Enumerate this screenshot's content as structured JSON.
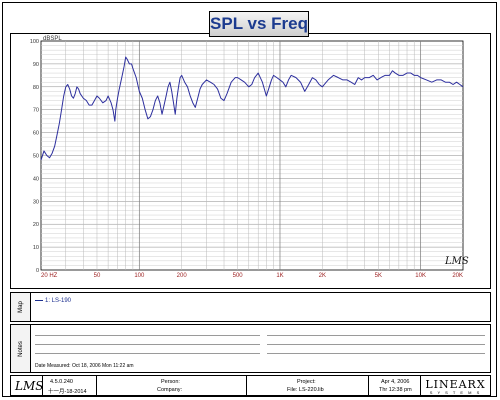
{
  "title": "SPL vs Freq",
  "chart_data": {
    "type": "line",
    "title": "SPL vs Freq",
    "ylabel": "dBSPL",
    "xlabel": "",
    "x_scale": "log",
    "xlim": [
      20,
      20000
    ],
    "ylim": [
      0,
      100
    ],
    "x_ticks": [
      {
        "v": 20,
        "label": "20 HZ"
      },
      {
        "v": 50,
        "label": "50"
      },
      {
        "v": 100,
        "label": "100"
      },
      {
        "v": 200,
        "label": "200"
      },
      {
        "v": 500,
        "label": "500"
      },
      {
        "v": 1000,
        "label": "1K"
      },
      {
        "v": 2000,
        "label": "2K"
      },
      {
        "v": 5000,
        "label": "5K"
      },
      {
        "v": 10000,
        "label": "10K"
      },
      {
        "v": 20000,
        "label": "20K"
      }
    ],
    "y_ticks": [
      0,
      10,
      20,
      30,
      40,
      50,
      60,
      70,
      80,
      90,
      100
    ],
    "grid": true,
    "series": [
      {
        "name": "1: LS-190",
        "color": "#2d2f9e",
        "points": [
          [
            20,
            48
          ],
          [
            21,
            52
          ],
          [
            22,
            50
          ],
          [
            23,
            49
          ],
          [
            24,
            51
          ],
          [
            25,
            54
          ],
          [
            26,
            59
          ],
          [
            27,
            64
          ],
          [
            28,
            70
          ],
          [
            29,
            76
          ],
          [
            30,
            80
          ],
          [
            31,
            81
          ],
          [
            32,
            79
          ],
          [
            33,
            76
          ],
          [
            34,
            75
          ],
          [
            35,
            77
          ],
          [
            36,
            80
          ],
          [
            37,
            79
          ],
          [
            38,
            77
          ],
          [
            40,
            75
          ],
          [
            42,
            74
          ],
          [
            44,
            72
          ],
          [
            46,
            72
          ],
          [
            48,
            74
          ],
          [
            50,
            76
          ],
          [
            52,
            75
          ],
          [
            55,
            73
          ],
          [
            58,
            74
          ],
          [
            60,
            76
          ],
          [
            63,
            73
          ],
          [
            65,
            70
          ],
          [
            67,
            65
          ],
          [
            68,
            70
          ],
          [
            70,
            75
          ],
          [
            72,
            79
          ],
          [
            75,
            84
          ],
          [
            78,
            89
          ],
          [
            80,
            93
          ],
          [
            82,
            92
          ],
          [
            85,
            90
          ],
          [
            88,
            90
          ],
          [
            90,
            88
          ],
          [
            95,
            84
          ],
          [
            100,
            78
          ],
          [
            105,
            75
          ],
          [
            110,
            70
          ],
          [
            115,
            66
          ],
          [
            120,
            67
          ],
          [
            125,
            70
          ],
          [
            130,
            74
          ],
          [
            135,
            76
          ],
          [
            140,
            73
          ],
          [
            145,
            68
          ],
          [
            150,
            72
          ],
          [
            155,
            76
          ],
          [
            160,
            80
          ],
          [
            165,
            82
          ],
          [
            170,
            78
          ],
          [
            175,
            73
          ],
          [
            180,
            68
          ],
          [
            185,
            75
          ],
          [
            190,
            80
          ],
          [
            195,
            84
          ],
          [
            200,
            85
          ],
          [
            210,
            82
          ],
          [
            220,
            80
          ],
          [
            230,
            76
          ],
          [
            240,
            73
          ],
          [
            250,
            71
          ],
          [
            260,
            75
          ],
          [
            270,
            79
          ],
          [
            280,
            81
          ],
          [
            300,
            83
          ],
          [
            320,
            82
          ],
          [
            340,
            81
          ],
          [
            360,
            79
          ],
          [
            380,
            75
          ],
          [
            400,
            74
          ],
          [
            420,
            77
          ],
          [
            450,
            82
          ],
          [
            480,
            84
          ],
          [
            500,
            84
          ],
          [
            530,
            83
          ],
          [
            560,
            82
          ],
          [
            600,
            80
          ],
          [
            630,
            81
          ],
          [
            660,
            84
          ],
          [
            700,
            86
          ],
          [
            750,
            82
          ],
          [
            800,
            76
          ],
          [
            830,
            79
          ],
          [
            870,
            83
          ],
          [
            900,
            85
          ],
          [
            950,
            84
          ],
          [
            1000,
            83
          ],
          [
            1050,
            82
          ],
          [
            1100,
            80
          ],
          [
            1150,
            83
          ],
          [
            1200,
            85
          ],
          [
            1300,
            84
          ],
          [
            1400,
            82
          ],
          [
            1500,
            78
          ],
          [
            1600,
            81
          ],
          [
            1700,
            84
          ],
          [
            1800,
            83
          ],
          [
            1900,
            81
          ],
          [
            2000,
            80
          ],
          [
            2200,
            83
          ],
          [
            2400,
            85
          ],
          [
            2600,
            84
          ],
          [
            2800,
            83
          ],
          [
            3000,
            83
          ],
          [
            3200,
            82
          ],
          [
            3400,
            81
          ],
          [
            3600,
            84
          ],
          [
            3800,
            83
          ],
          [
            4000,
            84
          ],
          [
            4300,
            84
          ],
          [
            4600,
            85
          ],
          [
            4900,
            83
          ],
          [
            5200,
            84
          ],
          [
            5600,
            85
          ],
          [
            6000,
            85
          ],
          [
            6300,
            87
          ],
          [
            6600,
            86
          ],
          [
            7000,
            85
          ],
          [
            7500,
            85
          ],
          [
            8000,
            86
          ],
          [
            8500,
            86
          ],
          [
            9000,
            85
          ],
          [
            9500,
            85
          ],
          [
            10000,
            84
          ],
          [
            11000,
            83
          ],
          [
            12000,
            82
          ],
          [
            13000,
            83
          ],
          [
            14000,
            83
          ],
          [
            15000,
            82
          ],
          [
            16000,
            82
          ],
          [
            17000,
            81
          ],
          [
            18000,
            82
          ],
          [
            19000,
            81
          ],
          [
            20000,
            80
          ]
        ]
      }
    ]
  },
  "watermark": "LMS",
  "map": {
    "label": "Map",
    "legend_entry": "1: LS-190"
  },
  "notes": {
    "label": "Notes",
    "date_measured": "Date Measured: Oct 18, 2006  Mon 11:22 am"
  },
  "footer": {
    "logo": "LMS",
    "version": "4.5.0.240",
    "version_date": "十一月-18-2014",
    "person_label": "Person:",
    "company_label": "Company:",
    "project_label": "Project:",
    "file_label": "File: LS-220.lib",
    "date": "Apr 4, 2006",
    "time": "Thr 12:38 pm",
    "brand": "LINEARX",
    "brand_sub": "S Y S T E M S"
  }
}
